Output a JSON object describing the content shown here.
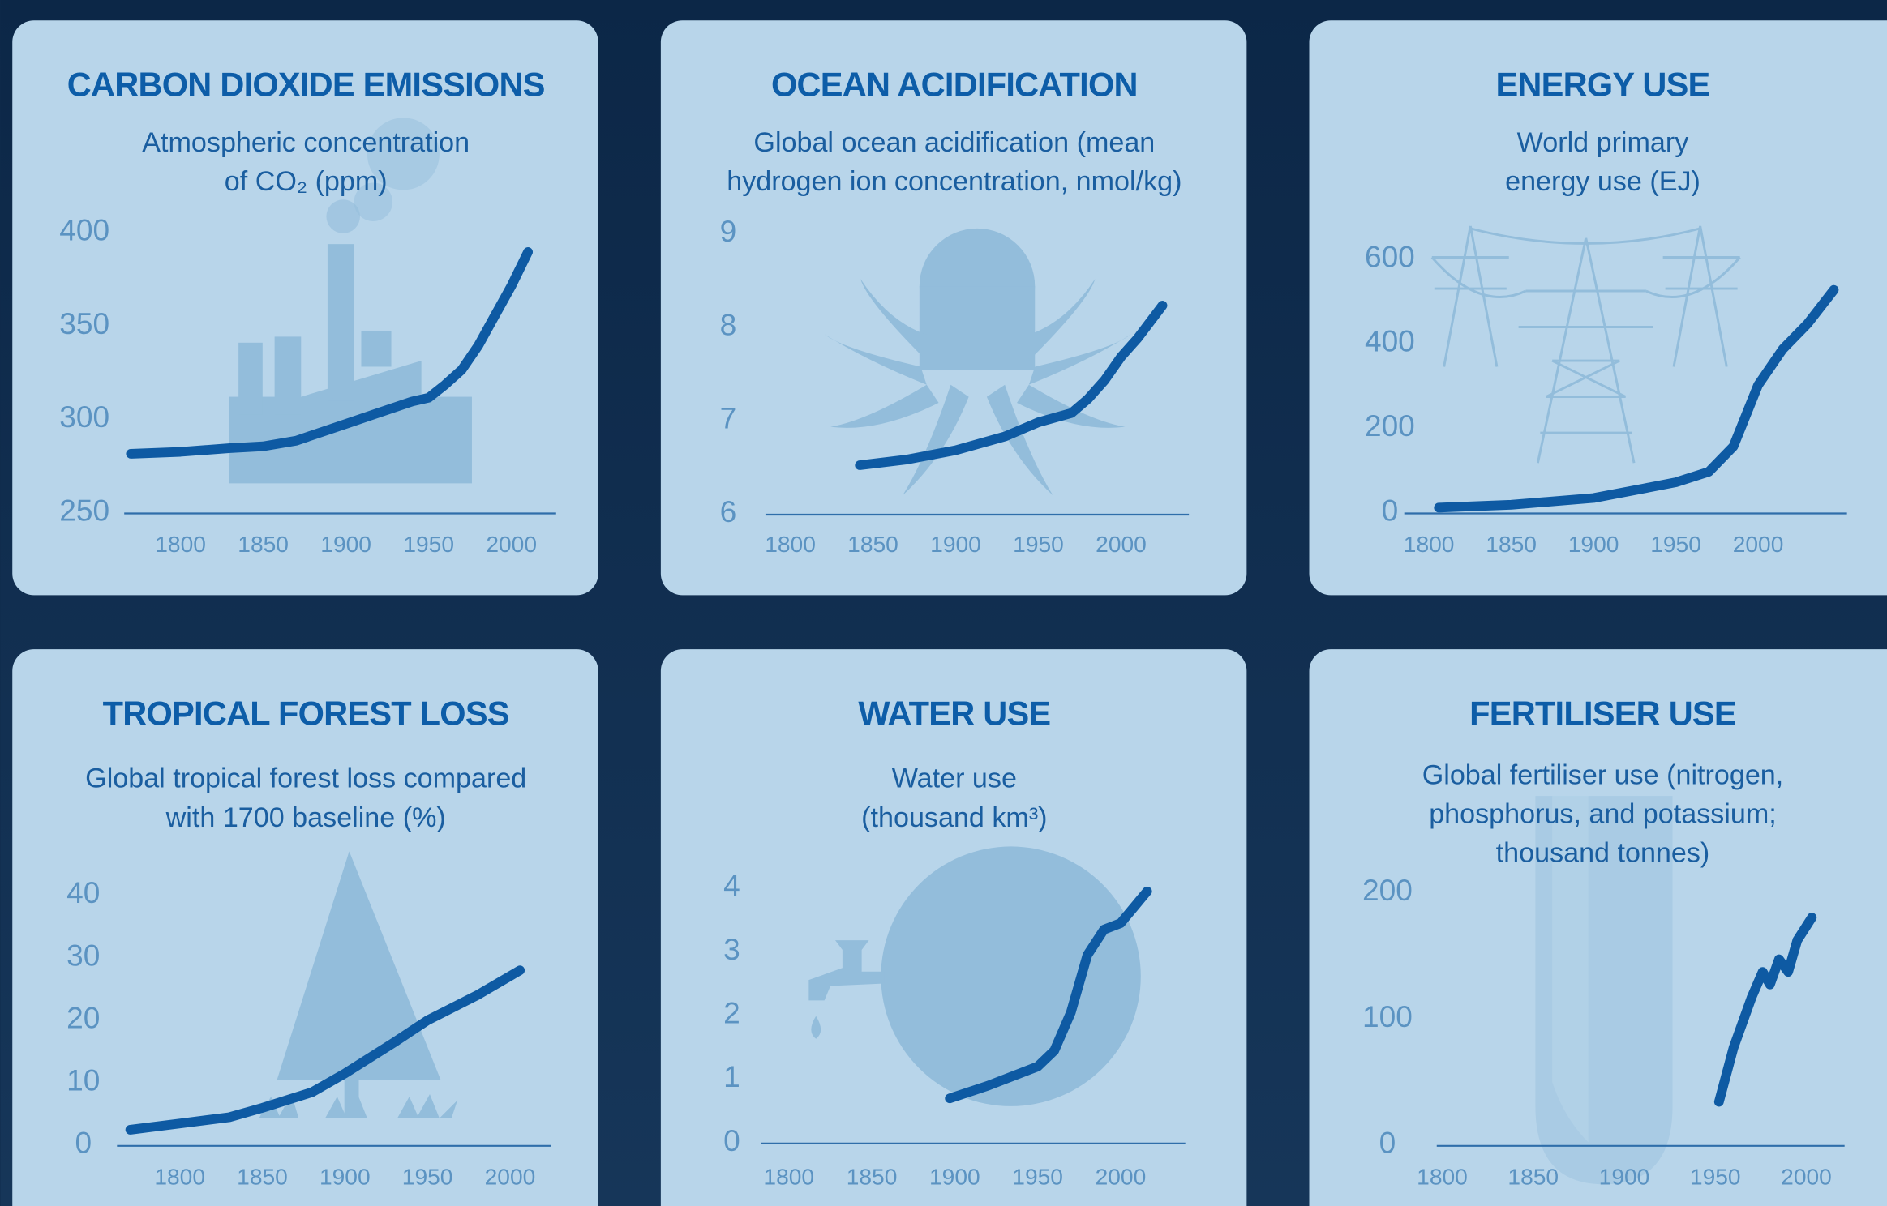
{
  "chart_data": [
    {
      "type": "line",
      "title": "CARBON DIOXIDE EMISSIONS",
      "subtitle": [
        "Atmospheric concentration",
        "of CO₂ (ppm)"
      ],
      "x": [
        1770,
        1800,
        1830,
        1850,
        1870,
        1900,
        1920,
        1940,
        1950,
        1960,
        1970,
        1980,
        1990,
        2000,
        2010
      ],
      "values": [
        280,
        281,
        283,
        284,
        287,
        296,
        302,
        308,
        310,
        317,
        325,
        338,
        354,
        370,
        388
      ],
      "xlim": [
        1766,
        2027
      ],
      "xticks": [
        1800,
        1850,
        1900,
        1950,
        2000
      ],
      "ylim": [
        250,
        400
      ],
      "yticks": [
        250,
        300,
        350,
        400
      ],
      "color": "#0e5aa3"
    },
    {
      "type": "line",
      "title": "OCEAN ACIDIFICATION",
      "subtitle": [
        "Global ocean acidification (mean",
        "hydrogen ion concentration, nmol/kg)"
      ],
      "x": [
        1842,
        1870,
        1900,
        1930,
        1950,
        1970,
        1980,
        1990,
        2000,
        2010,
        2025
      ],
      "values": [
        6.49,
        6.55,
        6.65,
        6.8,
        6.95,
        7.05,
        7.2,
        7.4,
        7.65,
        7.85,
        8.2
      ],
      "xlim": [
        1785,
        2041
      ],
      "xticks": [
        1800,
        1850,
        1900,
        1950,
        2000
      ],
      "ylim": [
        6,
        9
      ],
      "yticks": [
        6,
        7,
        8,
        9
      ],
      "color": "#0e5aa3"
    },
    {
      "type": "line",
      "title": "ENERGY USE",
      "subtitle": [
        "World primary",
        "energy use (EJ)"
      ],
      "x": [
        1806,
        1850,
        1900,
        1930,
        1950,
        1970,
        1985,
        2000,
        2015,
        2030,
        2046
      ],
      "values": [
        5,
        12,
        28,
        50,
        65,
        90,
        150,
        295,
        380,
        440,
        520
      ],
      "xlim": [
        1785,
        2054
      ],
      "xticks": [
        1800,
        1850,
        1900,
        1950,
        2000
      ],
      "ylim": [
        0,
        600
      ],
      "yticks": [
        0,
        200,
        400,
        600
      ],
      "color": "#0e5aa3"
    },
    {
      "type": "line",
      "title": "TROPICAL FOREST LOSS",
      "subtitle": [
        "Global tropical forest loss compared",
        "with 1700 baseline (%)"
      ],
      "x": [
        1770,
        1800,
        1830,
        1850,
        1880,
        1900,
        1930,
        1950,
        1980,
        2006
      ],
      "values": [
        2,
        3,
        4,
        5.5,
        8,
        11,
        16,
        19.5,
        23.5,
        27.5
      ],
      "xlim": [
        1762,
        2025
      ],
      "xticks": [
        1800,
        1850,
        1900,
        1950,
        2000
      ],
      "ylim": [
        0,
        40
      ],
      "yticks": [
        0,
        10,
        20,
        30,
        40
      ],
      "color": "#0e5aa3"
    },
    {
      "type": "line",
      "title": "WATER USE",
      "subtitle": [
        "Water use",
        "(thousand km³)"
      ],
      "x": [
        1897,
        1920,
        1950,
        1960,
        1970,
        1980,
        1990,
        2000,
        2016
      ],
      "values": [
        0.65,
        0.85,
        1.15,
        1.4,
        2.0,
        2.9,
        3.3,
        3.4,
        3.9
      ],
      "xlim": [
        1783,
        2039
      ],
      "xticks": [
        1800,
        1850,
        1900,
        1950,
        2000
      ],
      "ylim": [
        0,
        4
      ],
      "yticks": [
        0,
        1,
        2,
        3,
        4
      ],
      "color": "#0e5aa3"
    },
    {
      "type": "line",
      "title": "FERTILISER USE",
      "subtitle": [
        "Global fertiliser use (nitrogen,",
        "phosphorus, and potassium;",
        "thousand tonnes)"
      ],
      "x": [
        1952,
        1960,
        1970,
        1976,
        1980,
        1985,
        1990,
        1995,
        2003
      ],
      "values": [
        32,
        75,
        115,
        135,
        125,
        145,
        135,
        160,
        178
      ],
      "xlim": [
        1797,
        2021
      ],
      "xticks": [
        1800,
        1850,
        1900,
        1950,
        2000
      ],
      "ylim": [
        0,
        200
      ],
      "yticks": [
        0,
        100,
        200
      ],
      "color": "#0e5aa3"
    }
  ]
}
